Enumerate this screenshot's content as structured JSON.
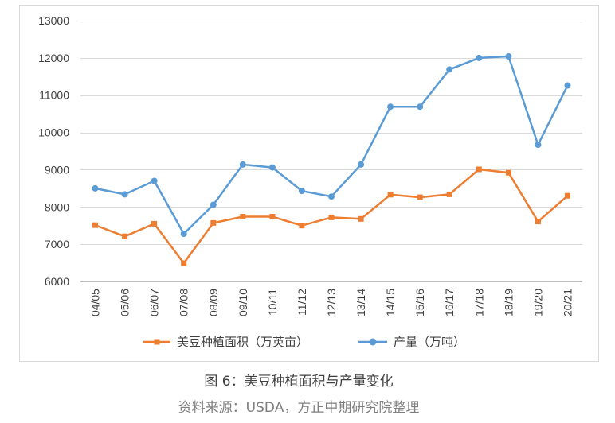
{
  "chart_data": {
    "type": "line",
    "categories": [
      "04/05",
      "05/06",
      "06/07",
      "07/08",
      "08/09",
      "09/10",
      "10/11",
      "11/12",
      "12/13",
      "13/14",
      "14/15",
      "15/16",
      "16/17",
      "17/18",
      "18/19",
      "19/20",
      "20/21"
    ],
    "series": [
      {
        "name": "美豆种植面积（万英亩）",
        "color": "#ED7D31",
        "marker": "square",
        "values": [
          7510,
          7210,
          7550,
          6490,
          7570,
          7740,
          7740,
          7500,
          7720,
          7680,
          8330,
          8260,
          8340,
          9010,
          8920,
          7610,
          8300
        ]
      },
      {
        "name": "产量（万吨）",
        "color": "#5B9BD5",
        "marker": "circle",
        "values": [
          8500,
          8340,
          8700,
          7280,
          8060,
          9140,
          9060,
          8430,
          8280,
          9140,
          10690,
          10690,
          11690,
          12000,
          12040,
          9670,
          11260
        ]
      }
    ],
    "ylim": [
      6000,
      13000
    ],
    "yticks": [
      6000,
      7000,
      8000,
      9000,
      10000,
      11000,
      12000,
      13000
    ],
    "grid": true,
    "legend": "bottom"
  },
  "figure": {
    "caption": "图 6：美豆种植面积与产量变化",
    "source": "资料来源：USDA，方正中期研究院整理"
  }
}
